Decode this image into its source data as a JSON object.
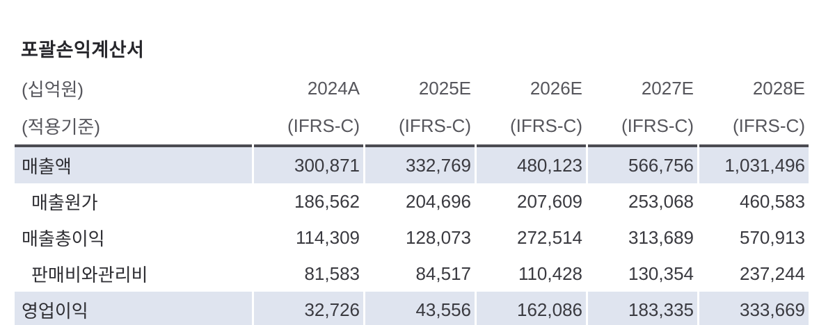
{
  "table": {
    "title": "포괄손익계산서",
    "unit_label": "(십억원)",
    "basis_label": "(적용기준)",
    "columns": [
      "2024A",
      "2025E",
      "2026E",
      "2027E",
      "2028E"
    ],
    "basis": [
      "(IFRS-C)",
      "(IFRS-C)",
      "(IFRS-C)",
      "(IFRS-C)",
      "(IFRS-C)"
    ],
    "rows": [
      {
        "label": "매출액",
        "indent": false,
        "highlight": true,
        "values": [
          "300,871",
          "332,769",
          "480,123",
          "566,756",
          "1,031,496"
        ]
      },
      {
        "label": "매출원가",
        "indent": true,
        "highlight": false,
        "values": [
          "186,562",
          "204,696",
          "207,609",
          "253,068",
          "460,583"
        ]
      },
      {
        "label": "매출총이익",
        "indent": false,
        "highlight": false,
        "values": [
          "114,309",
          "128,073",
          "272,514",
          "313,689",
          "570,913"
        ]
      },
      {
        "label": "판매비와관리비",
        "indent": true,
        "highlight": false,
        "values": [
          "81,583",
          "84,517",
          "110,428",
          "130,354",
          "237,244"
        ]
      },
      {
        "label": "영업이익",
        "indent": false,
        "highlight": true,
        "values": [
          "32,726",
          "43,556",
          "162,086",
          "183,335",
          "333,669"
        ]
      }
    ],
    "colors": {
      "highlight_bg": "#dfe4ef",
      "rule": "#4b4b52",
      "header_text": "#56565c",
      "body_text": "#3a3a40",
      "label_text": "#2e2e33"
    }
  }
}
